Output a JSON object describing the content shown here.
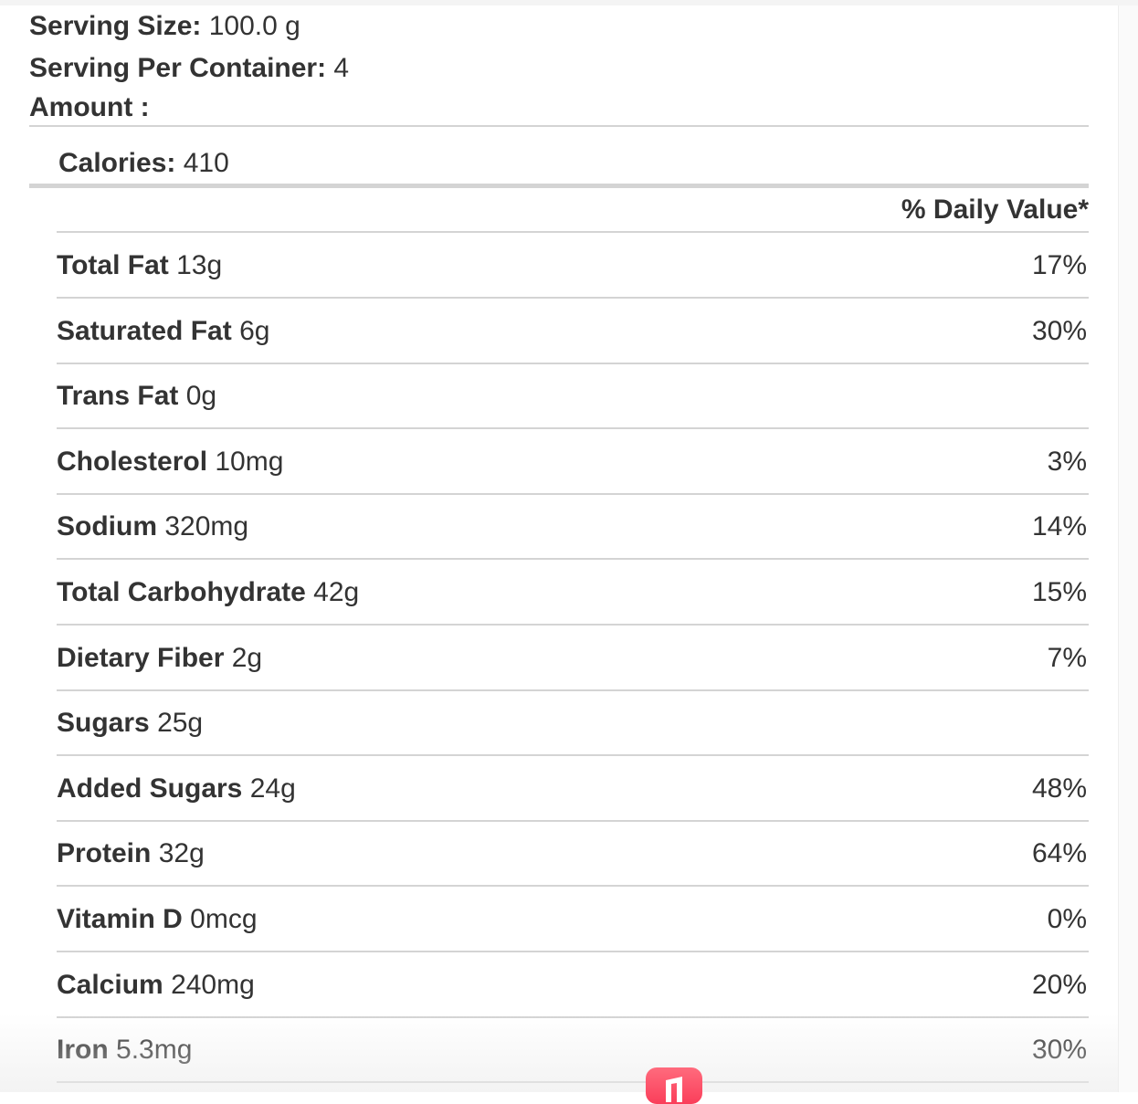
{
  "header": {
    "serving_size_label": "Serving Size:",
    "serving_size_value": "100.0 g",
    "servings_label": "Serving Per Container:",
    "servings_value": "4",
    "amount_label": "Amount :",
    "calories_label": "Calories:",
    "calories_value": "410"
  },
  "daily_value_header": "% Daily Value*",
  "nutrients": [
    {
      "name": "Total Fat",
      "amount": "13g",
      "dv": "17%"
    },
    {
      "name": "Saturated Fat",
      "amount": "6g",
      "dv": "30%"
    },
    {
      "name": "Trans Fat",
      "amount": "0g",
      "dv": ""
    },
    {
      "name": "Cholesterol",
      "amount": "10mg",
      "dv": "3%"
    },
    {
      "name": "Sodium",
      "amount": "320mg",
      "dv": "14%"
    },
    {
      "name": "Total Carbohydrate",
      "amount": "42g",
      "dv": "15%"
    },
    {
      "name": "Dietary Fiber",
      "amount": "2g",
      "dv": "7%"
    },
    {
      "name": "Sugars",
      "amount": "25g",
      "dv": ""
    },
    {
      "name": "Added Sugars",
      "amount": "24g",
      "dv": "48%"
    },
    {
      "name": "Protein",
      "amount": "32g",
      "dv": "64%"
    },
    {
      "name": "Vitamin D",
      "amount": "0mcg",
      "dv": "0%"
    },
    {
      "name": "Calcium",
      "amount": "240mg",
      "dv": "20%"
    },
    {
      "name": "Iron",
      "amount": "5.3mg",
      "dv": "30%"
    }
  ],
  "dock": {
    "icon": "music-app-icon",
    "color": "#fa3e5a"
  }
}
